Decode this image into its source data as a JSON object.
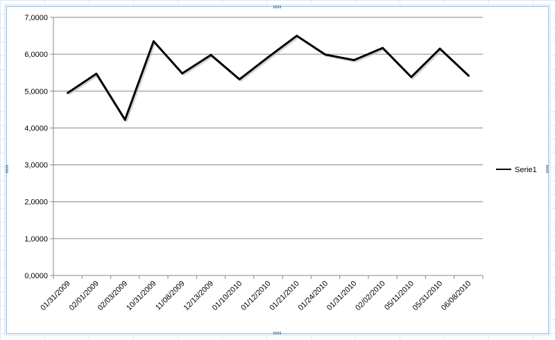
{
  "chart_data": {
    "type": "line",
    "title": "",
    "xlabel": "",
    "ylabel": "",
    "categories": [
      "01/31/2009",
      "02/01/2009",
      "02/03/2009",
      "10/31/2009",
      "11/08/2009",
      "12/13/2009",
      "01/10/2010",
      "01/12/2010",
      "01/21/2010",
      "01/24/2010",
      "01/31/2010",
      "02/02/2010",
      "05/11/2010",
      "05/31/2010",
      "06/08/2010"
    ],
    "series": [
      {
        "name": "Serie1",
        "color": "#000000",
        "values": [
          4.95,
          5.47,
          4.22,
          6.35,
          5.48,
          5.98,
          5.32,
          5.92,
          6.5,
          5.99,
          5.84,
          6.17,
          5.38,
          6.15,
          5.42
        ]
      }
    ],
    "ylim": [
      0,
      7
    ],
    "yticks": [
      "0,0000",
      "1,0000",
      "2,0000",
      "3,0000",
      "4,0000",
      "5,0000",
      "6,0000",
      "7,0000"
    ],
    "grid": "horizontal major",
    "legend_position": "right"
  }
}
